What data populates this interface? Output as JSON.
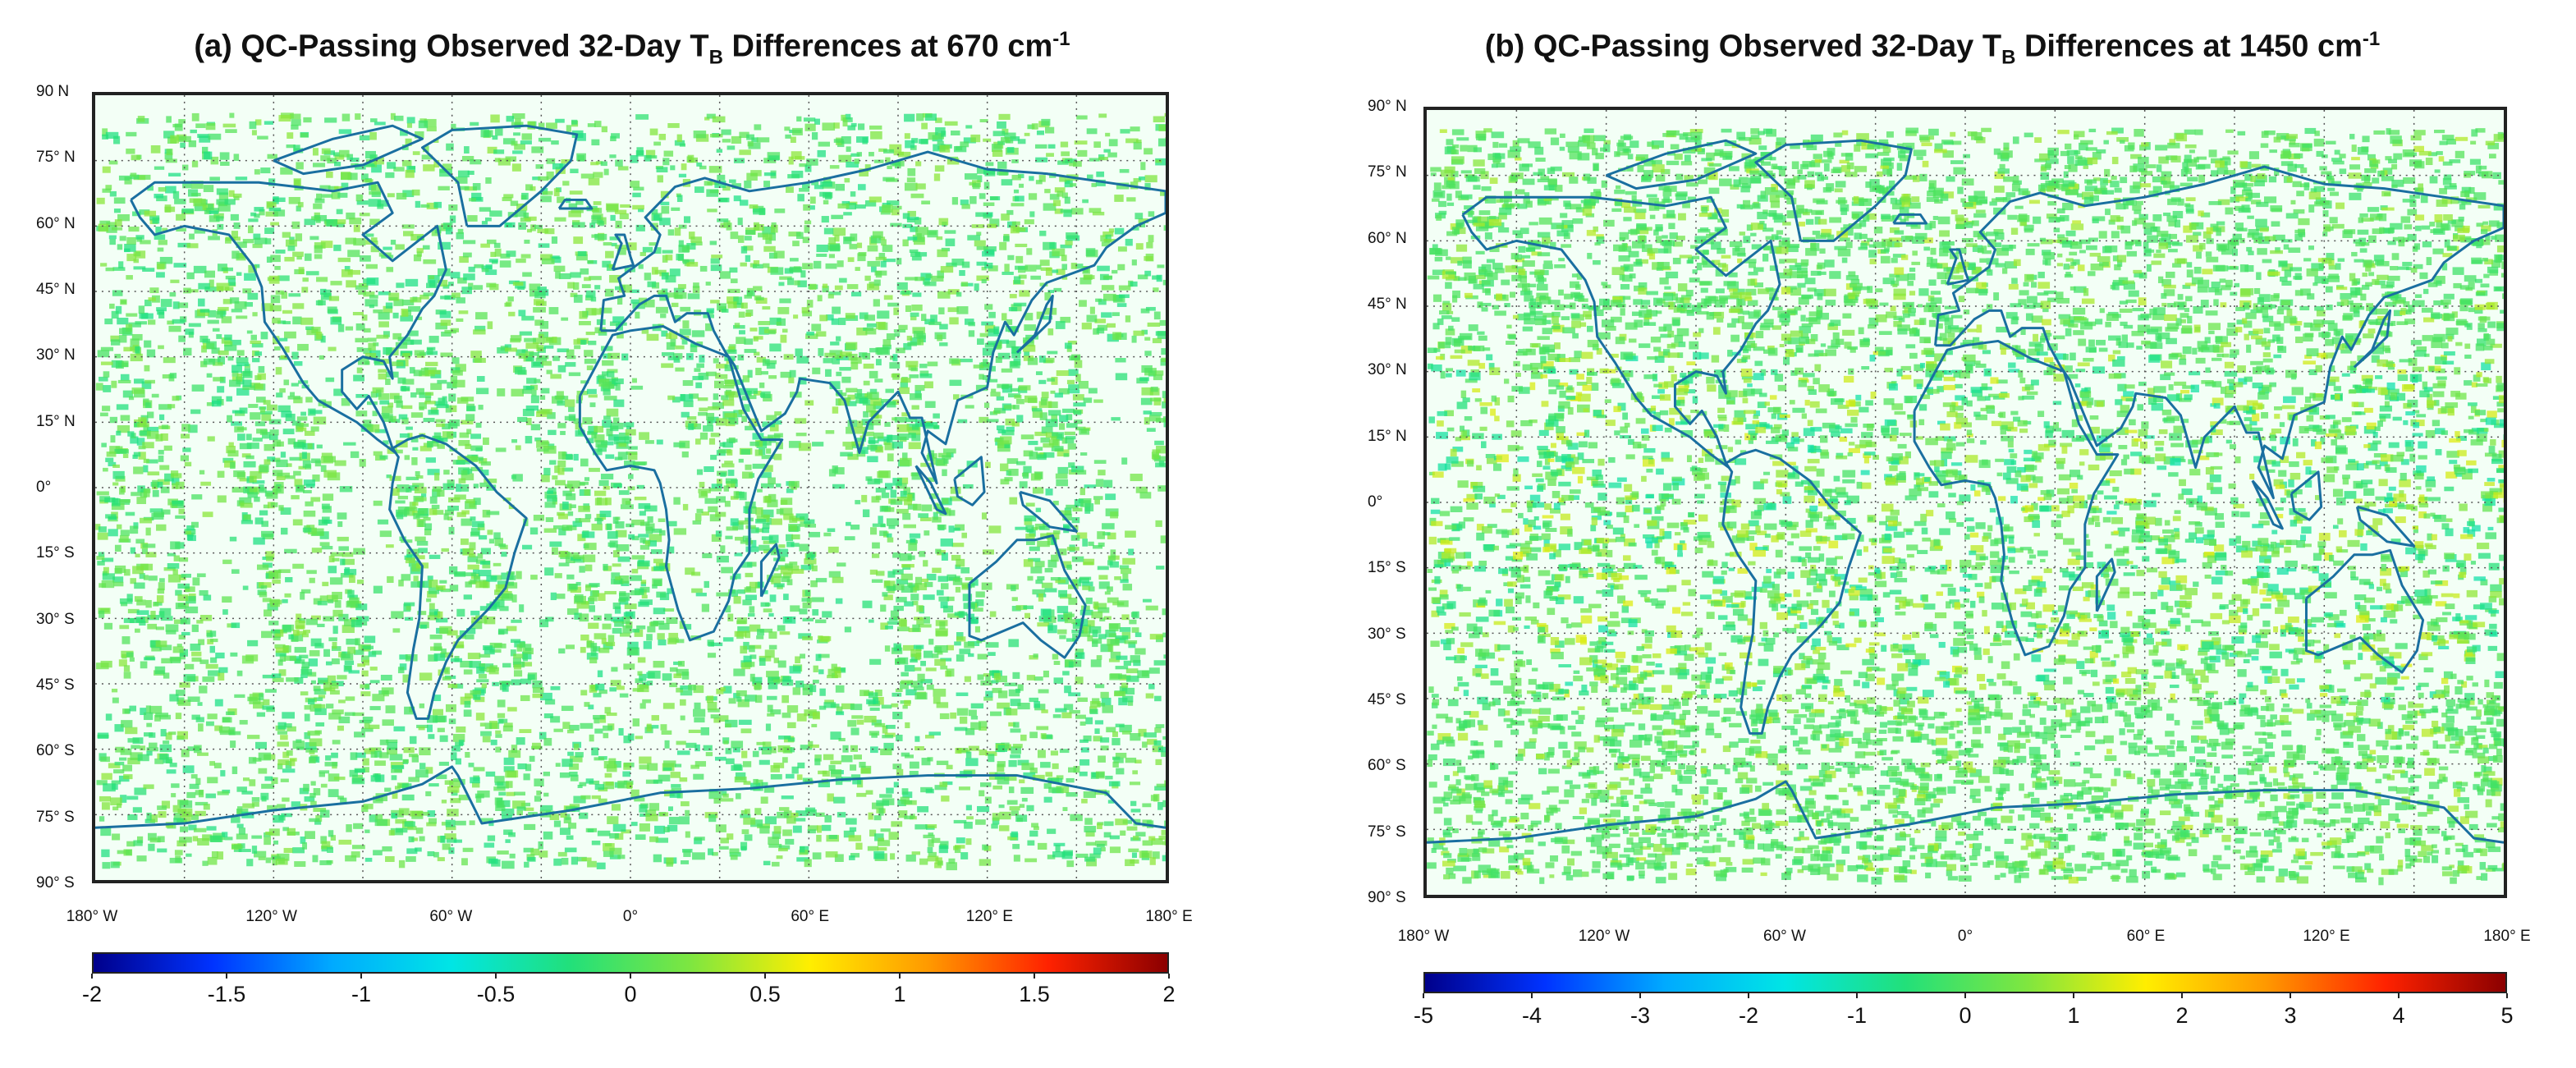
{
  "panels": [
    {
      "id": "a",
      "title_main": "(a) QC-Passing Observed 32-Day T",
      "title_sub": "B",
      "title_after": " Differences at 670 cm",
      "title_sup": "-1",
      "lat_labels": [
        "90 N",
        "75° N",
        "60° N",
        "45° N",
        "30° N",
        "15° N",
        "0°",
        "15° S",
        "30° S",
        "45° S",
        "60° S",
        "75° S",
        "90° S"
      ],
      "lon_labels": [
        "180° W",
        "120° W",
        "60° W",
        "0°",
        "60° E",
        "120° E",
        "180° E"
      ],
      "colorbar": {
        "min": -2,
        "max": 2,
        "ticks": [
          "-2",
          "-1.5",
          "-1",
          "-0.5",
          "0",
          "0.5",
          "1",
          "1.5",
          "2"
        ]
      }
    },
    {
      "id": "b",
      "title_main": "(b) QC-Passing Observed 32-Day T",
      "title_sub": "B",
      "title_after": " Differences at 1450 cm",
      "title_sup": "-1",
      "lat_labels": [
        "90° N",
        "75° N",
        "60° N",
        "45° N",
        "30° N",
        "15° N",
        "0°",
        "15° S",
        "30° S",
        "45° S",
        "60° S",
        "75° S",
        "90° S"
      ],
      "lon_labels": [
        "180° W",
        "120° W",
        "60° W",
        "0°",
        "60° E",
        "120° E",
        "180° E"
      ],
      "colorbar": {
        "min": -5,
        "max": 5,
        "ticks": [
          "-5",
          "-4",
          "-3",
          "-2",
          "-1",
          "0",
          "1",
          "2",
          "3",
          "4",
          "5"
        ]
      }
    }
  ],
  "colors": {
    "background_green": "#20e070",
    "coastline": "#1a6fa0",
    "colormap": [
      "#00008b",
      "#0033ff",
      "#00aaff",
      "#00e5e5",
      "#22e07a",
      "#7ee640",
      "#ffee00",
      "#ff9900",
      "#ff2200",
      "#8b0000"
    ]
  }
}
